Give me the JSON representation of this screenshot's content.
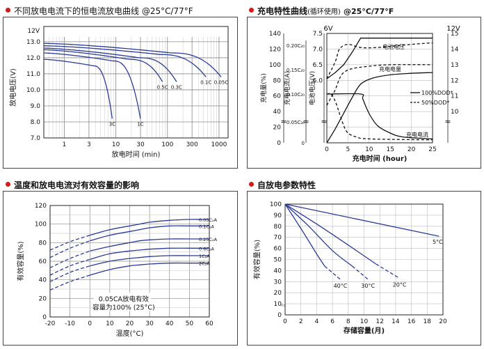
{
  "colors": {
    "curve": "#2b3a94",
    "grid": "#8a8a8a",
    "accent": "#d61a1a",
    "frame": "#444444"
  },
  "panels": {
    "discharge": {
      "title": "不同放电电流下的恒电流放电曲线 @25°C/77°F"
    },
    "charge": {
      "title": "充电特性曲线",
      "title_suffix": "(循环使用)",
      "title_temp": "@25°C/77°F"
    },
    "temperature": {
      "title": "温度和放电电流对有效容量的影响"
    },
    "selfdischarge": {
      "title": "自放电参数特性"
    }
  },
  "chart_data": [
    {
      "id": "discharge",
      "type": "line",
      "title": "不同放电电流下的恒电流放电曲线 @25°C/77°F",
      "xlabel": "放电时间 (min)",
      "ylabel": "放电电压(V)",
      "y_unit_label": "12V",
      "x_scale": "log",
      "xlim": [
        0.4,
        1500
      ],
      "ylim": [
        7.0,
        13.3
      ],
      "x_ticks": [
        1,
        3,
        10,
        30,
        100,
        300,
        1000
      ],
      "x_tick_labels": [
        "1",
        "3",
        "10",
        "30",
        "100",
        "300",
        "1000"
      ],
      "y_ticks": [
        7.0,
        8.0,
        9.0,
        10.0,
        11.0,
        12.0,
        13.0
      ],
      "y_tick_labels": [
        "7.0",
        "8.0",
        "9.0",
        "10.0",
        "11.0",
        "12.0",
        "13.0"
      ],
      "series": [
        {
          "name": "3C",
          "start_v": 11.9,
          "end_min": 8.5,
          "end_v": 8.2,
          "mid_v": 11.5
        },
        {
          "name": "1C",
          "start_v": 12.3,
          "end_min": 30,
          "end_v": 8.2,
          "mid_v": 11.8
        },
        {
          "name": "0.5C",
          "start_v": 12.5,
          "end_min": 80,
          "end_v": 10.5,
          "mid_v": 11.9
        },
        {
          "name": "0.3C",
          "start_v": 12.6,
          "end_min": 150,
          "end_v": 10.5,
          "mid_v": 12.0
        },
        {
          "name": "0.1C",
          "start_v": 12.75,
          "end_min": 560,
          "end_v": 10.8,
          "mid_v": 12.2
        },
        {
          "name": "0.05C",
          "start_v": 12.9,
          "end_min": 1100,
          "end_v": 10.8,
          "mid_v": 12.3
        }
      ]
    },
    {
      "id": "charge",
      "type": "line",
      "title": "充电特性曲线(循环使用) @25°C/77°F",
      "xlabel": "充电时间 (hour)",
      "xlim": [
        0,
        25
      ],
      "x_ticks": [
        0,
        5,
        10,
        15,
        20,
        25
      ],
      "x_tick_labels": [
        "0",
        "5",
        "10",
        "15",
        "20",
        "25"
      ],
      "left_axes": {
        "charge_capacity": {
          "label": "充电量(%)",
          "ticks": [
            "0",
            "20",
            "40",
            "60",
            "80",
            "100",
            "120",
            "140"
          ]
        },
        "charge_current": {
          "label": "充电电流(A)",
          "ticks": [
            "0",
            "0.05C₂₀",
            "0.10C₂₀",
            "0.15C₂₀",
            "0.20C₂₀"
          ]
        },
        "cell_voltage": {
          "label": "电池电压(V)",
          "unit_label": "6V",
          "ticks": [
            "6.0",
            "6.5",
            "7.0",
            "7.5"
          ]
        }
      },
      "right_axis": {
        "unit_label": "12V",
        "ticks": [
          "10",
          "11",
          "12",
          "13",
          "14",
          "15"
        ]
      },
      "series_labels": {
        "voltage": "电池电压",
        "capacity": "充电电量",
        "current": "充电电流"
      },
      "legend": {
        "full": "100%DOD*",
        "half": "50%DOD*",
        "placement": "right-middle"
      },
      "series": [
        {
          "name": "电池电压",
          "style": "solid",
          "dod": "100%",
          "x": [
            0,
            2,
            4,
            6,
            8,
            9,
            25
          ],
          "y_volt": [
            6.05,
            6.25,
            6.5,
            6.9,
            7.35,
            7.35,
            7.35
          ]
        },
        {
          "name": "电池电压",
          "style": "dashed",
          "dod": "50%",
          "x": [
            0,
            2,
            3,
            5,
            8,
            12,
            20,
            25
          ],
          "y_volt": [
            6.05,
            6.6,
            7.0,
            7.15,
            7.05,
            7.05,
            7.15,
            7.2
          ]
        },
        {
          "name": "充电电量",
          "style": "solid",
          "dod": "100%",
          "x": [
            0,
            2,
            4,
            6,
            8,
            11,
            15,
            20,
            25
          ],
          "y_pct": [
            0,
            18,
            38,
            58,
            75,
            83,
            87,
            89,
            90
          ]
        },
        {
          "name": "充电电量",
          "style": "dashed",
          "dod": "50%",
          "x": [
            0,
            1,
            2,
            3,
            4,
            6,
            10,
            15,
            25
          ],
          "y_pct": [
            48,
            58,
            68,
            82,
            90,
            95,
            98,
            100,
            100
          ]
        },
        {
          "name": "充电电流",
          "style": "solid",
          "dod": "100%",
          "x": [
            0,
            8,
            8.5,
            10,
            12,
            15,
            18,
            25
          ],
          "y_c20": [
            0.1,
            0.1,
            0.09,
            0.06,
            0.035,
            0.02,
            0.012,
            0.008
          ]
        },
        {
          "name": "充电电流",
          "style": "dashed",
          "dod": "50%",
          "x": [
            0,
            1,
            2,
            3,
            4,
            5,
            7,
            10,
            25
          ],
          "y_c20": [
            0.1,
            0.1,
            0.085,
            0.06,
            0.035,
            0.02,
            0.012,
            0.008,
            0.006
          ]
        }
      ]
    },
    {
      "id": "temperature",
      "type": "line",
      "title": "温度和放电电流对有效容量的影响",
      "xlabel": "温度(°C)",
      "ylabel": "有效容量(%)",
      "xlim": [
        -20,
        60
      ],
      "ylim": [
        0,
        120
      ],
      "x_ticks": [
        -20,
        -10,
        0,
        10,
        20,
        30,
        40,
        50,
        60
      ],
      "x_tick_labels": [
        "-20",
        "-10",
        "0",
        "10",
        "20",
        "30",
        "40",
        "50",
        "60"
      ],
      "y_ticks": [
        0,
        20,
        40,
        60,
        80,
        100,
        120
      ],
      "y_tick_labels": [
        "0",
        "20",
        "40",
        "60",
        "80",
        "100",
        "120"
      ],
      "annotation": [
        "0.05CA放电有效",
        "容量为100% (25°C)"
      ],
      "series": [
        {
          "name": "0.05C₂A",
          "x": [
            -20,
            -10,
            0,
            10,
            20,
            25,
            30,
            40,
            50,
            60
          ],
          "y": [
            72,
            81,
            88,
            94,
            98,
            100,
            102,
            104,
            105,
            105
          ]
        },
        {
          "name": "0.1C₂A",
          "x": [
            -20,
            -10,
            0,
            10,
            20,
            25,
            30,
            40,
            50,
            60
          ],
          "y": [
            64,
            74,
            82,
            88,
            92,
            94,
            96,
            98,
            98,
            98
          ]
        },
        {
          "name": "0.25C₂A",
          "x": [
            -20,
            -10,
            0,
            10,
            20,
            25,
            30,
            40,
            50,
            60
          ],
          "y": [
            53,
            63,
            71,
            76,
            80,
            82,
            83,
            84,
            84,
            84
          ]
        },
        {
          "name": "0.6C₂A",
          "x": [
            -20,
            -10,
            0,
            10,
            20,
            25,
            30,
            40,
            50,
            60
          ],
          "y": [
            45,
            55,
            62,
            68,
            71,
            72,
            73,
            74,
            74,
            74
          ]
        },
        {
          "name": "1C₂A",
          "x": [
            -20,
            -10,
            0,
            10,
            20,
            25,
            30,
            40,
            50,
            60
          ],
          "y": [
            38,
            48,
            55,
            60,
            63,
            64,
            65,
            66,
            66,
            66
          ]
        },
        {
          "name": "2C₂A",
          "x": [
            -20,
            -10,
            0,
            10,
            20,
            25,
            30,
            40,
            50,
            60
          ],
          "y": [
            29,
            38,
            45,
            51,
            55,
            56,
            57,
            58,
            58,
            58
          ]
        }
      ]
    },
    {
      "id": "selfdischarge",
      "type": "line",
      "title": "自放电参数特性",
      "xlabel": "存储容量(月)",
      "ylabel": "有效容量(%)",
      "xlim": [
        0,
        20
      ],
      "ylim": [
        0,
        100
      ],
      "x_ticks": [
        0,
        2,
        4,
        6,
        8,
        10,
        12,
        14,
        16,
        18,
        20
      ],
      "x_tick_labels": [
        "0",
        "2",
        "4",
        "6",
        "8",
        "10",
        "12",
        "14",
        "16",
        "18",
        "20"
      ],
      "y_ticks": [
        0,
        10,
        20,
        30,
        40,
        50,
        60,
        70,
        80,
        90,
        100
      ],
      "y_tick_labels": [
        "0",
        "10",
        "20",
        "30",
        "40",
        "50",
        "60",
        "70",
        "80",
        "90",
        "100"
      ],
      "corner_note": "Rs",
      "series": [
        {
          "name": "5°C",
          "solid_x": [
            0,
            19.5
          ],
          "solid_y": [
            100,
            71
          ],
          "dashed_x": [],
          "dashed_y": []
        },
        {
          "name": "20°C",
          "solid_x": [
            0,
            4,
            8,
            11.5
          ],
          "solid_y": [
            100,
            82,
            63,
            46
          ],
          "dashed_x": [
            11.5,
            14.5
          ],
          "dashed_y": [
            46,
            33
          ]
        },
        {
          "name": "30°C",
          "solid_x": [
            0,
            3,
            6,
            8.5
          ],
          "solid_y": [
            100,
            80,
            58,
            44
          ],
          "dashed_x": [
            8.5,
            10.5
          ],
          "dashed_y": [
            44,
            32
          ]
        },
        {
          "name": "40°C",
          "solid_x": [
            0,
            2,
            4,
            5
          ],
          "solid_y": [
            100,
            78,
            55,
            44
          ],
          "dashed_x": [
            5,
            7
          ],
          "dashed_y": [
            44,
            32
          ]
        }
      ]
    }
  ]
}
